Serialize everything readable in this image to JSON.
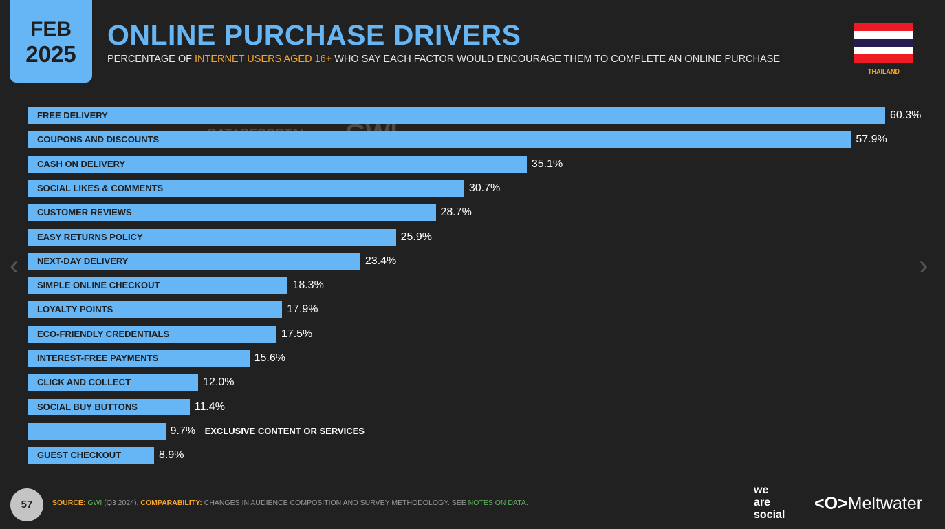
{
  "header": {
    "month": "FEB",
    "year": "2025",
    "title": "ONLINE PURCHASE DRIVERS",
    "subtitle_pre": "PERCENTAGE OF ",
    "subtitle_highlight": "INTERNET USERS AGED 16+",
    "subtitle_post": " WHO SAY EACH FACTOR WOULD ENCOURAGE THEM TO COMPLETE AN ONLINE PURCHASE",
    "country": "THAILAND"
  },
  "watermark": {
    "datareportal": "DATAREPORTAL",
    "gwi": "GWI."
  },
  "colors": {
    "bar": "#66b5f5",
    "accent": "#f6a52c",
    "background": "#212121",
    "link": "#5fb85f"
  },
  "chart_data": {
    "type": "bar",
    "orientation": "horizontal",
    "categories": [
      "FREE DELIVERY",
      "COUPONS AND DISCOUNTS",
      "CASH ON DELIVERY",
      "SOCIAL LIKES & COMMENTS",
      "CUSTOMER REVIEWS",
      "EASY RETURNS POLICY",
      "NEXT-DAY DELIVERY",
      "SIMPLE ONLINE CHECKOUT",
      "LOYALTY POINTS",
      "ECO-FRIENDLY CREDENTIALS",
      "INTEREST-FREE PAYMENTS",
      "CLICK AND COLLECT",
      "SOCIAL BUY BUTTONS",
      "EXCLUSIVE CONTENT OR SERVICES",
      "GUEST CHECKOUT"
    ],
    "values": [
      60.3,
      57.9,
      35.1,
      30.7,
      28.7,
      25.9,
      23.4,
      18.3,
      17.9,
      17.5,
      15.6,
      12.0,
      11.4,
      9.7,
      8.9
    ],
    "value_labels": [
      "60.3%",
      "57.9%",
      "35.1%",
      "30.7%",
      "28.7%",
      "25.9%",
      "23.4%",
      "18.3%",
      "17.9%",
      "17.5%",
      "15.6%",
      "12.0%",
      "11.4%",
      "9.7%",
      "8.9%"
    ],
    "unit": "%",
    "xlim": [
      0,
      60.3
    ],
    "grid": false
  },
  "footer": {
    "page": "57",
    "source_label": "SOURCE:",
    "source": "GWI",
    "source_detail": " (Q3 2024). ",
    "comp_label": "COMPARABILITY:",
    "comp_text": " CHANGES IN AUDIENCE COMPOSITION AND SURVEY METHODOLOGY. SEE ",
    "notes_link": "NOTES ON DATA."
  },
  "logos": {
    "was": "we are social",
    "meltwater": "Meltwater"
  },
  "nav": {
    "prev": "‹",
    "next": "›"
  }
}
